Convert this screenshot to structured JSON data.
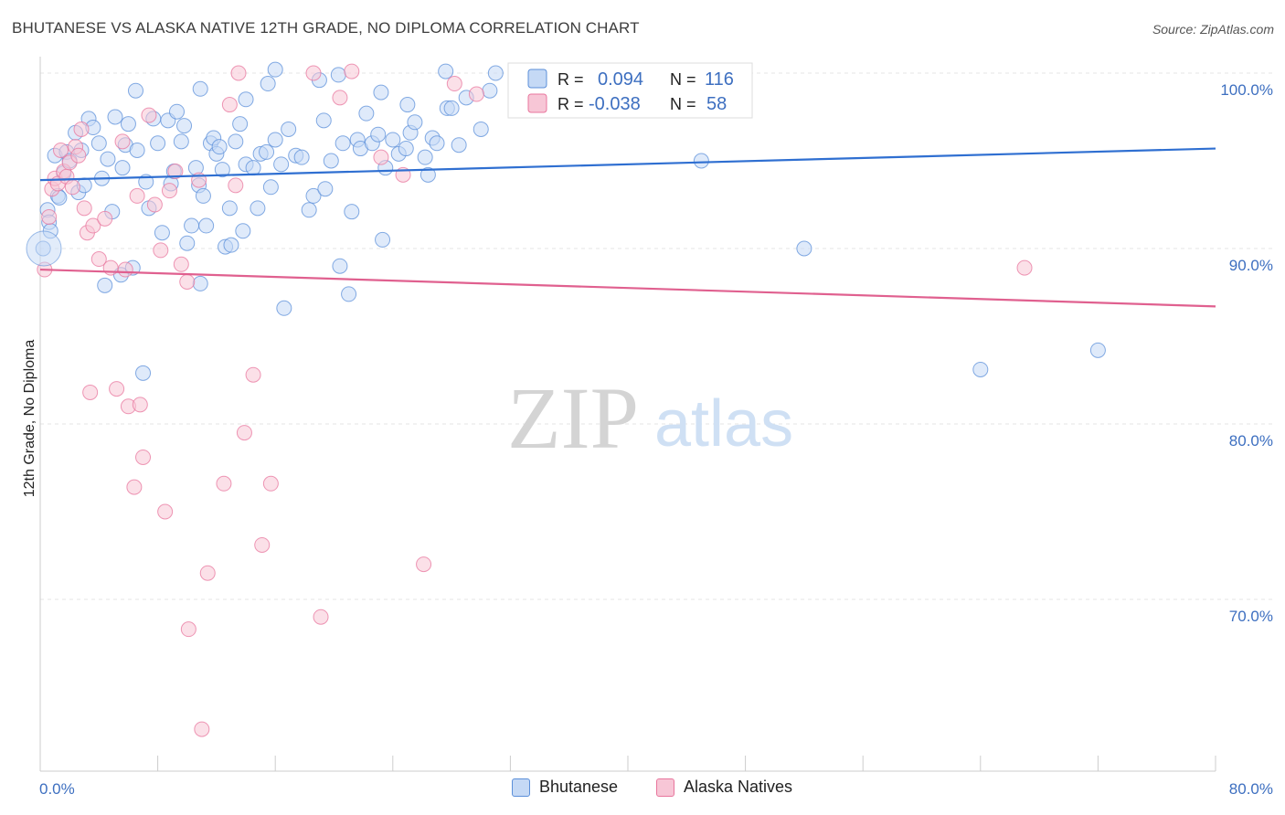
{
  "title": "BHUTANESE VS ALASKA NATIVE 12TH GRADE, NO DIPLOMA CORRELATION CHART",
  "source": "Source: ZipAtlas.com",
  "watermark": {
    "zip": "ZIP",
    "atlas": "atlas"
  },
  "chart_data": {
    "type": "scatter",
    "xlabel": "",
    "ylabel": "12th Grade, No Diploma",
    "xlim": [
      0,
      80
    ],
    "ylim": [
      60,
      101.5
    ],
    "x_tick_labels": [
      "0.0%",
      "80.0%"
    ],
    "y_ticks": [
      100,
      90,
      80,
      70
    ],
    "y_tick_labels": [
      "100.0%",
      "90.0%",
      "80.0%",
      "70.0%"
    ],
    "grid": true,
    "legend_position": "top-center",
    "series": [
      {
        "name": "Bhutanese",
        "color": "#5b8fd9",
        "fill": "#c5d9f5",
        "R": "0.094",
        "N": "116",
        "trend": {
          "x": [
            0,
            80
          ],
          "y": [
            93.9,
            95.7
          ]
        },
        "points": [
          [
            0.2,
            90.0
          ],
          [
            0.5,
            92.2
          ],
          [
            0.6,
            91.5
          ],
          [
            0.7,
            91.0
          ],
          [
            1.0,
            95.3
          ],
          [
            1.2,
            93.0
          ],
          [
            1.3,
            92.9
          ],
          [
            1.6,
            94.3
          ],
          [
            1.8,
            95.5
          ],
          [
            2.0,
            95.0
          ],
          [
            2.4,
            96.6
          ],
          [
            2.6,
            93.2
          ],
          [
            2.8,
            95.6
          ],
          [
            3.0,
            93.6
          ],
          [
            3.3,
            97.4
          ],
          [
            3.6,
            96.9
          ],
          [
            4.0,
            96.0
          ],
          [
            4.2,
            94.0
          ],
          [
            4.4,
            87.9
          ],
          [
            4.6,
            95.1
          ],
          [
            4.9,
            92.1
          ],
          [
            5.1,
            97.5
          ],
          [
            5.5,
            88.5
          ],
          [
            5.6,
            94.6
          ],
          [
            5.8,
            95.9
          ],
          [
            6.0,
            97.1
          ],
          [
            6.3,
            88.9
          ],
          [
            6.6,
            95.6
          ],
          [
            7.0,
            82.9
          ],
          [
            7.2,
            93.8
          ],
          [
            7.4,
            92.3
          ],
          [
            7.7,
            97.4
          ],
          [
            8.0,
            96.0
          ],
          [
            8.3,
            90.9
          ],
          [
            8.7,
            97.3
          ],
          [
            8.9,
            93.7
          ],
          [
            9.1,
            94.4
          ],
          [
            9.3,
            97.8
          ],
          [
            9.6,
            96.1
          ],
          [
            9.8,
            97.0
          ],
          [
            10.0,
            90.3
          ],
          [
            10.3,
            91.3
          ],
          [
            10.6,
            94.6
          ],
          [
            10.8,
            93.6
          ],
          [
            10.9,
            88.0
          ],
          [
            11.1,
            93.0
          ],
          [
            11.3,
            91.3
          ],
          [
            11.6,
            96.0
          ],
          [
            11.8,
            96.3
          ],
          [
            12.0,
            95.4
          ],
          [
            12.2,
            95.8
          ],
          [
            12.4,
            94.5
          ],
          [
            12.6,
            90.1
          ],
          [
            12.9,
            92.3
          ],
          [
            13.0,
            90.2
          ],
          [
            13.3,
            96.1
          ],
          [
            13.6,
            97.1
          ],
          [
            13.8,
            91.0
          ],
          [
            14.0,
            94.8
          ],
          [
            14.5,
            94.6
          ],
          [
            14.8,
            92.3
          ],
          [
            15.0,
            95.4
          ],
          [
            15.4,
            95.5
          ],
          [
            15.7,
            93.5
          ],
          [
            16.0,
            96.2
          ],
          [
            16.4,
            94.8
          ],
          [
            16.6,
            86.6
          ],
          [
            16.9,
            96.8
          ],
          [
            17.4,
            95.3
          ],
          [
            17.8,
            95.2
          ],
          [
            18.3,
            92.2
          ],
          [
            18.6,
            93.0
          ],
          [
            19.0,
            99.6
          ],
          [
            19.4,
            93.4
          ],
          [
            19.8,
            95.0
          ],
          [
            20.4,
            89.0
          ],
          [
            20.6,
            96.0
          ],
          [
            21.0,
            87.4
          ],
          [
            21.2,
            92.1
          ],
          [
            21.6,
            96.2
          ],
          [
            21.8,
            95.7
          ],
          [
            22.2,
            97.7
          ],
          [
            22.6,
            96.0
          ],
          [
            23.0,
            96.5
          ],
          [
            23.3,
            90.5
          ],
          [
            23.5,
            94.6
          ],
          [
            24.0,
            96.2
          ],
          [
            24.4,
            95.4
          ],
          [
            24.9,
            95.7
          ],
          [
            25.2,
            96.6
          ],
          [
            25.5,
            97.2
          ],
          [
            26.2,
            95.2
          ],
          [
            26.4,
            94.2
          ],
          [
            26.7,
            96.3
          ],
          [
            27.0,
            96.0
          ],
          [
            27.7,
            98.0
          ],
          [
            28.0,
            98.0
          ],
          [
            28.5,
            95.9
          ],
          [
            29.0,
            98.6
          ],
          [
            30.0,
            96.8
          ],
          [
            45.0,
            95.0
          ],
          [
            52.0,
            90.0
          ],
          [
            72.0,
            84.2
          ],
          [
            64.0,
            83.1
          ],
          [
            6.5,
            99.0
          ],
          [
            16.0,
            100.2
          ],
          [
            20.3,
            99.9
          ],
          [
            27.6,
            100.1
          ],
          [
            30.6,
            99.0
          ],
          [
            31.0,
            100.0
          ],
          [
            23.2,
            98.9
          ],
          [
            19.3,
            97.3
          ],
          [
            14.0,
            98.5
          ],
          [
            10.9,
            99.1
          ],
          [
            15.5,
            99.4
          ],
          [
            25.0,
            98.2
          ]
        ]
      },
      {
        "name": "Alaska Natives",
        "color": "#e8769d",
        "fill": "#f7c6d6",
        "R": "-0.038",
        "N": "58",
        "trend": {
          "x": [
            0,
            80
          ],
          "y": [
            88.8,
            86.7
          ]
        },
        "points": [
          [
            0.3,
            88.8
          ],
          [
            0.6,
            91.8
          ],
          [
            0.8,
            93.4
          ],
          [
            1.0,
            94.0
          ],
          [
            1.2,
            93.7
          ],
          [
            1.4,
            95.6
          ],
          [
            1.6,
            94.4
          ],
          [
            1.8,
            94.1
          ],
          [
            2.0,
            94.9
          ],
          [
            2.2,
            93.5
          ],
          [
            2.4,
            95.8
          ],
          [
            2.6,
            95.3
          ],
          [
            2.8,
            96.8
          ],
          [
            3.0,
            92.3
          ],
          [
            3.2,
            90.9
          ],
          [
            3.4,
            81.8
          ],
          [
            3.6,
            91.3
          ],
          [
            4.0,
            89.4
          ],
          [
            4.4,
            91.7
          ],
          [
            4.8,
            88.9
          ],
          [
            5.2,
            82.0
          ],
          [
            5.6,
            96.1
          ],
          [
            5.8,
            88.8
          ],
          [
            6.0,
            81.0
          ],
          [
            6.4,
            76.4
          ],
          [
            6.6,
            93.0
          ],
          [
            6.8,
            81.1
          ],
          [
            7.0,
            78.1
          ],
          [
            7.4,
            97.6
          ],
          [
            7.8,
            92.5
          ],
          [
            8.2,
            89.9
          ],
          [
            8.5,
            75.0
          ],
          [
            8.8,
            93.3
          ],
          [
            9.2,
            94.4
          ],
          [
            9.6,
            89.1
          ],
          [
            10.0,
            88.1
          ],
          [
            10.8,
            93.9
          ],
          [
            11.4,
            71.5
          ],
          [
            12.5,
            76.6
          ],
          [
            13.3,
            93.6
          ],
          [
            13.5,
            100.0
          ],
          [
            13.9,
            79.5
          ],
          [
            14.5,
            82.8
          ],
          [
            15.1,
            73.1
          ],
          [
            15.7,
            76.6
          ],
          [
            18.6,
            100.0
          ],
          [
            20.4,
            98.6
          ],
          [
            23.2,
            95.2
          ],
          [
            24.7,
            94.2
          ],
          [
            26.1,
            72.0
          ],
          [
            28.2,
            99.4
          ],
          [
            29.7,
            98.8
          ],
          [
            67.0,
            88.9
          ],
          [
            12.9,
            98.2
          ],
          [
            11.0,
            62.6
          ],
          [
            19.1,
            69.0
          ],
          [
            10.1,
            68.3
          ],
          [
            21.2,
            100.1
          ]
        ]
      }
    ]
  }
}
